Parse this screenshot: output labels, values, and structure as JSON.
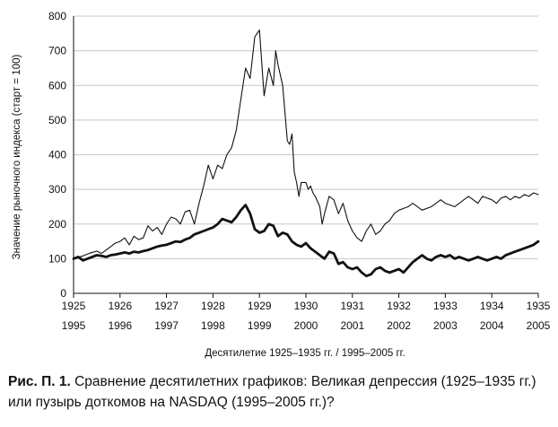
{
  "chart_data": {
    "type": "line",
    "title": "",
    "xlabel": "Десятилетие 1925–1935 гг. / 1995–2005 гг.",
    "ylabel": "Значение рыночного индекса (старт = 100)",
    "ylim": [
      0,
      800
    ],
    "xlim": [
      0,
      10
    ],
    "y_ticks": [
      "0",
      "100",
      "200",
      "300",
      "400",
      "500",
      "600",
      "700",
      "800"
    ],
    "x_ticks_top": [
      "1925",
      "1926",
      "1927",
      "1928",
      "1929",
      "1930",
      "1931",
      "1932",
      "1933",
      "1934",
      "1935"
    ],
    "x_ticks_bottom": [
      "1995",
      "1996",
      "1997",
      "1998",
      "1999",
      "2000",
      "2001",
      "2002",
      "2003",
      "2004",
      "2005"
    ],
    "grid": "horizontal",
    "legend": "none",
    "colors": {
      "thin_line": "#111111",
      "thick_line": "#111111",
      "grid": "#c8c8c8"
    },
    "series": [
      {
        "style": "thin",
        "x": [
          0,
          0.2,
          0.35,
          0.5,
          0.6,
          0.7,
          0.8,
          0.9,
          1.0,
          1.1,
          1.2,
          1.3,
          1.4,
          1.5,
          1.6,
          1.7,
          1.8,
          1.9,
          2.0,
          2.1,
          2.2,
          2.3,
          2.4,
          2.5,
          2.6,
          2.7,
          2.8,
          2.9,
          3.0,
          3.1,
          3.2,
          3.25,
          3.3,
          3.4,
          3.5,
          3.6,
          3.7,
          3.8,
          3.9,
          4.0,
          4.1,
          4.2,
          4.3,
          4.35,
          4.4,
          4.5,
          4.6,
          4.65,
          4.7,
          4.75,
          4.8,
          4.85,
          4.9,
          5.0,
          5.05,
          5.1,
          5.15,
          5.2,
          5.3,
          5.35,
          5.4,
          5.5,
          5.6,
          5.7,
          5.8,
          5.9,
          6.0,
          6.1,
          6.2,
          6.3,
          6.4,
          6.5,
          6.6,
          6.7,
          6.8,
          6.9,
          7.0,
          7.1,
          7.2,
          7.3,
          7.5,
          7.7,
          7.9,
          8.0,
          8.2,
          8.4,
          8.5,
          8.6,
          8.7,
          8.8,
          9.0,
          9.1,
          9.2,
          9.3,
          9.4,
          9.5,
          9.6,
          9.7,
          9.8,
          9.9,
          10.0
        ],
        "y": [
          100,
          108,
          116,
          122,
          115,
          125,
          135,
          145,
          150,
          160,
          140,
          165,
          155,
          160,
          195,
          180,
          190,
          170,
          200,
          220,
          215,
          200,
          235,
          240,
          200,
          260,
          310,
          370,
          330,
          370,
          360,
          380,
          400,
          420,
          470,
          560,
          650,
          620,
          740,
          760,
          570,
          650,
          600,
          700,
          660,
          600,
          440,
          430,
          460,
          350,
          320,
          280,
          320,
          320,
          300,
          310,
          290,
          280,
          250,
          200,
          230,
          280,
          270,
          230,
          260,
          210,
          180,
          160,
          150,
          180,
          200,
          170,
          180,
          200,
          210,
          230,
          240,
          245,
          250,
          260,
          240,
          250,
          270,
          260,
          250,
          270,
          280,
          270,
          260,
          280,
          270,
          260,
          275,
          280,
          270,
          280,
          275,
          285,
          280,
          290,
          285
        ]
      },
      {
        "style": "thick",
        "x": [
          0,
          0.1,
          0.2,
          0.3,
          0.4,
          0.5,
          0.6,
          0.7,
          0.8,
          0.9,
          1.0,
          1.1,
          1.2,
          1.3,
          1.4,
          1.5,
          1.6,
          1.7,
          1.8,
          1.9,
          2.0,
          2.1,
          2.2,
          2.3,
          2.4,
          2.5,
          2.6,
          2.7,
          2.8,
          2.9,
          3.0,
          3.1,
          3.2,
          3.3,
          3.4,
          3.5,
          3.6,
          3.7,
          3.8,
          3.9,
          4.0,
          4.1,
          4.2,
          4.3,
          4.4,
          4.5,
          4.6,
          4.7,
          4.8,
          4.9,
          5.0,
          5.1,
          5.2,
          5.3,
          5.4,
          5.5,
          5.6,
          5.7,
          5.8,
          5.9,
          6.0,
          6.1,
          6.2,
          6.3,
          6.4,
          6.5,
          6.6,
          6.7,
          6.8,
          6.9,
          7.0,
          7.1,
          7.2,
          7.3,
          7.4,
          7.5,
          7.6,
          7.7,
          7.8,
          7.9,
          8.0,
          8.1,
          8.2,
          8.3,
          8.4,
          8.5,
          8.6,
          8.7,
          8.8,
          8.9,
          9.0,
          9.1,
          9.2,
          9.3,
          9.4,
          9.5,
          9.6,
          9.7,
          9.8,
          9.9,
          10.0
        ],
        "y": [
          100,
          105,
          95,
          100,
          105,
          110,
          108,
          105,
          110,
          112,
          115,
          118,
          115,
          120,
          118,
          122,
          125,
          130,
          135,
          138,
          140,
          145,
          150,
          148,
          155,
          160,
          170,
          175,
          180,
          185,
          190,
          200,
          215,
          210,
          205,
          220,
          240,
          255,
          230,
          185,
          175,
          180,
          200,
          195,
          165,
          175,
          170,
          150,
          140,
          135,
          145,
          130,
          120,
          110,
          100,
          120,
          115,
          85,
          90,
          75,
          70,
          75,
          60,
          50,
          55,
          70,
          75,
          65,
          60,
          65,
          70,
          60,
          75,
          90,
          100,
          110,
          100,
          95,
          105,
          110,
          105,
          110,
          100,
          105,
          100,
          95,
          100,
          105,
          100,
          95,
          100,
          105,
          100,
          110,
          115,
          120,
          125,
          130,
          135,
          140,
          150
        ]
      }
    ]
  },
  "caption": {
    "prefix": "Рис. П. 1.",
    "text": "Сравнение десятилетних графиков: Великая депрессия (1925–1935 гг.) или пузырь доткомов на NASDAQ (1995–2005 гг.)?"
  }
}
